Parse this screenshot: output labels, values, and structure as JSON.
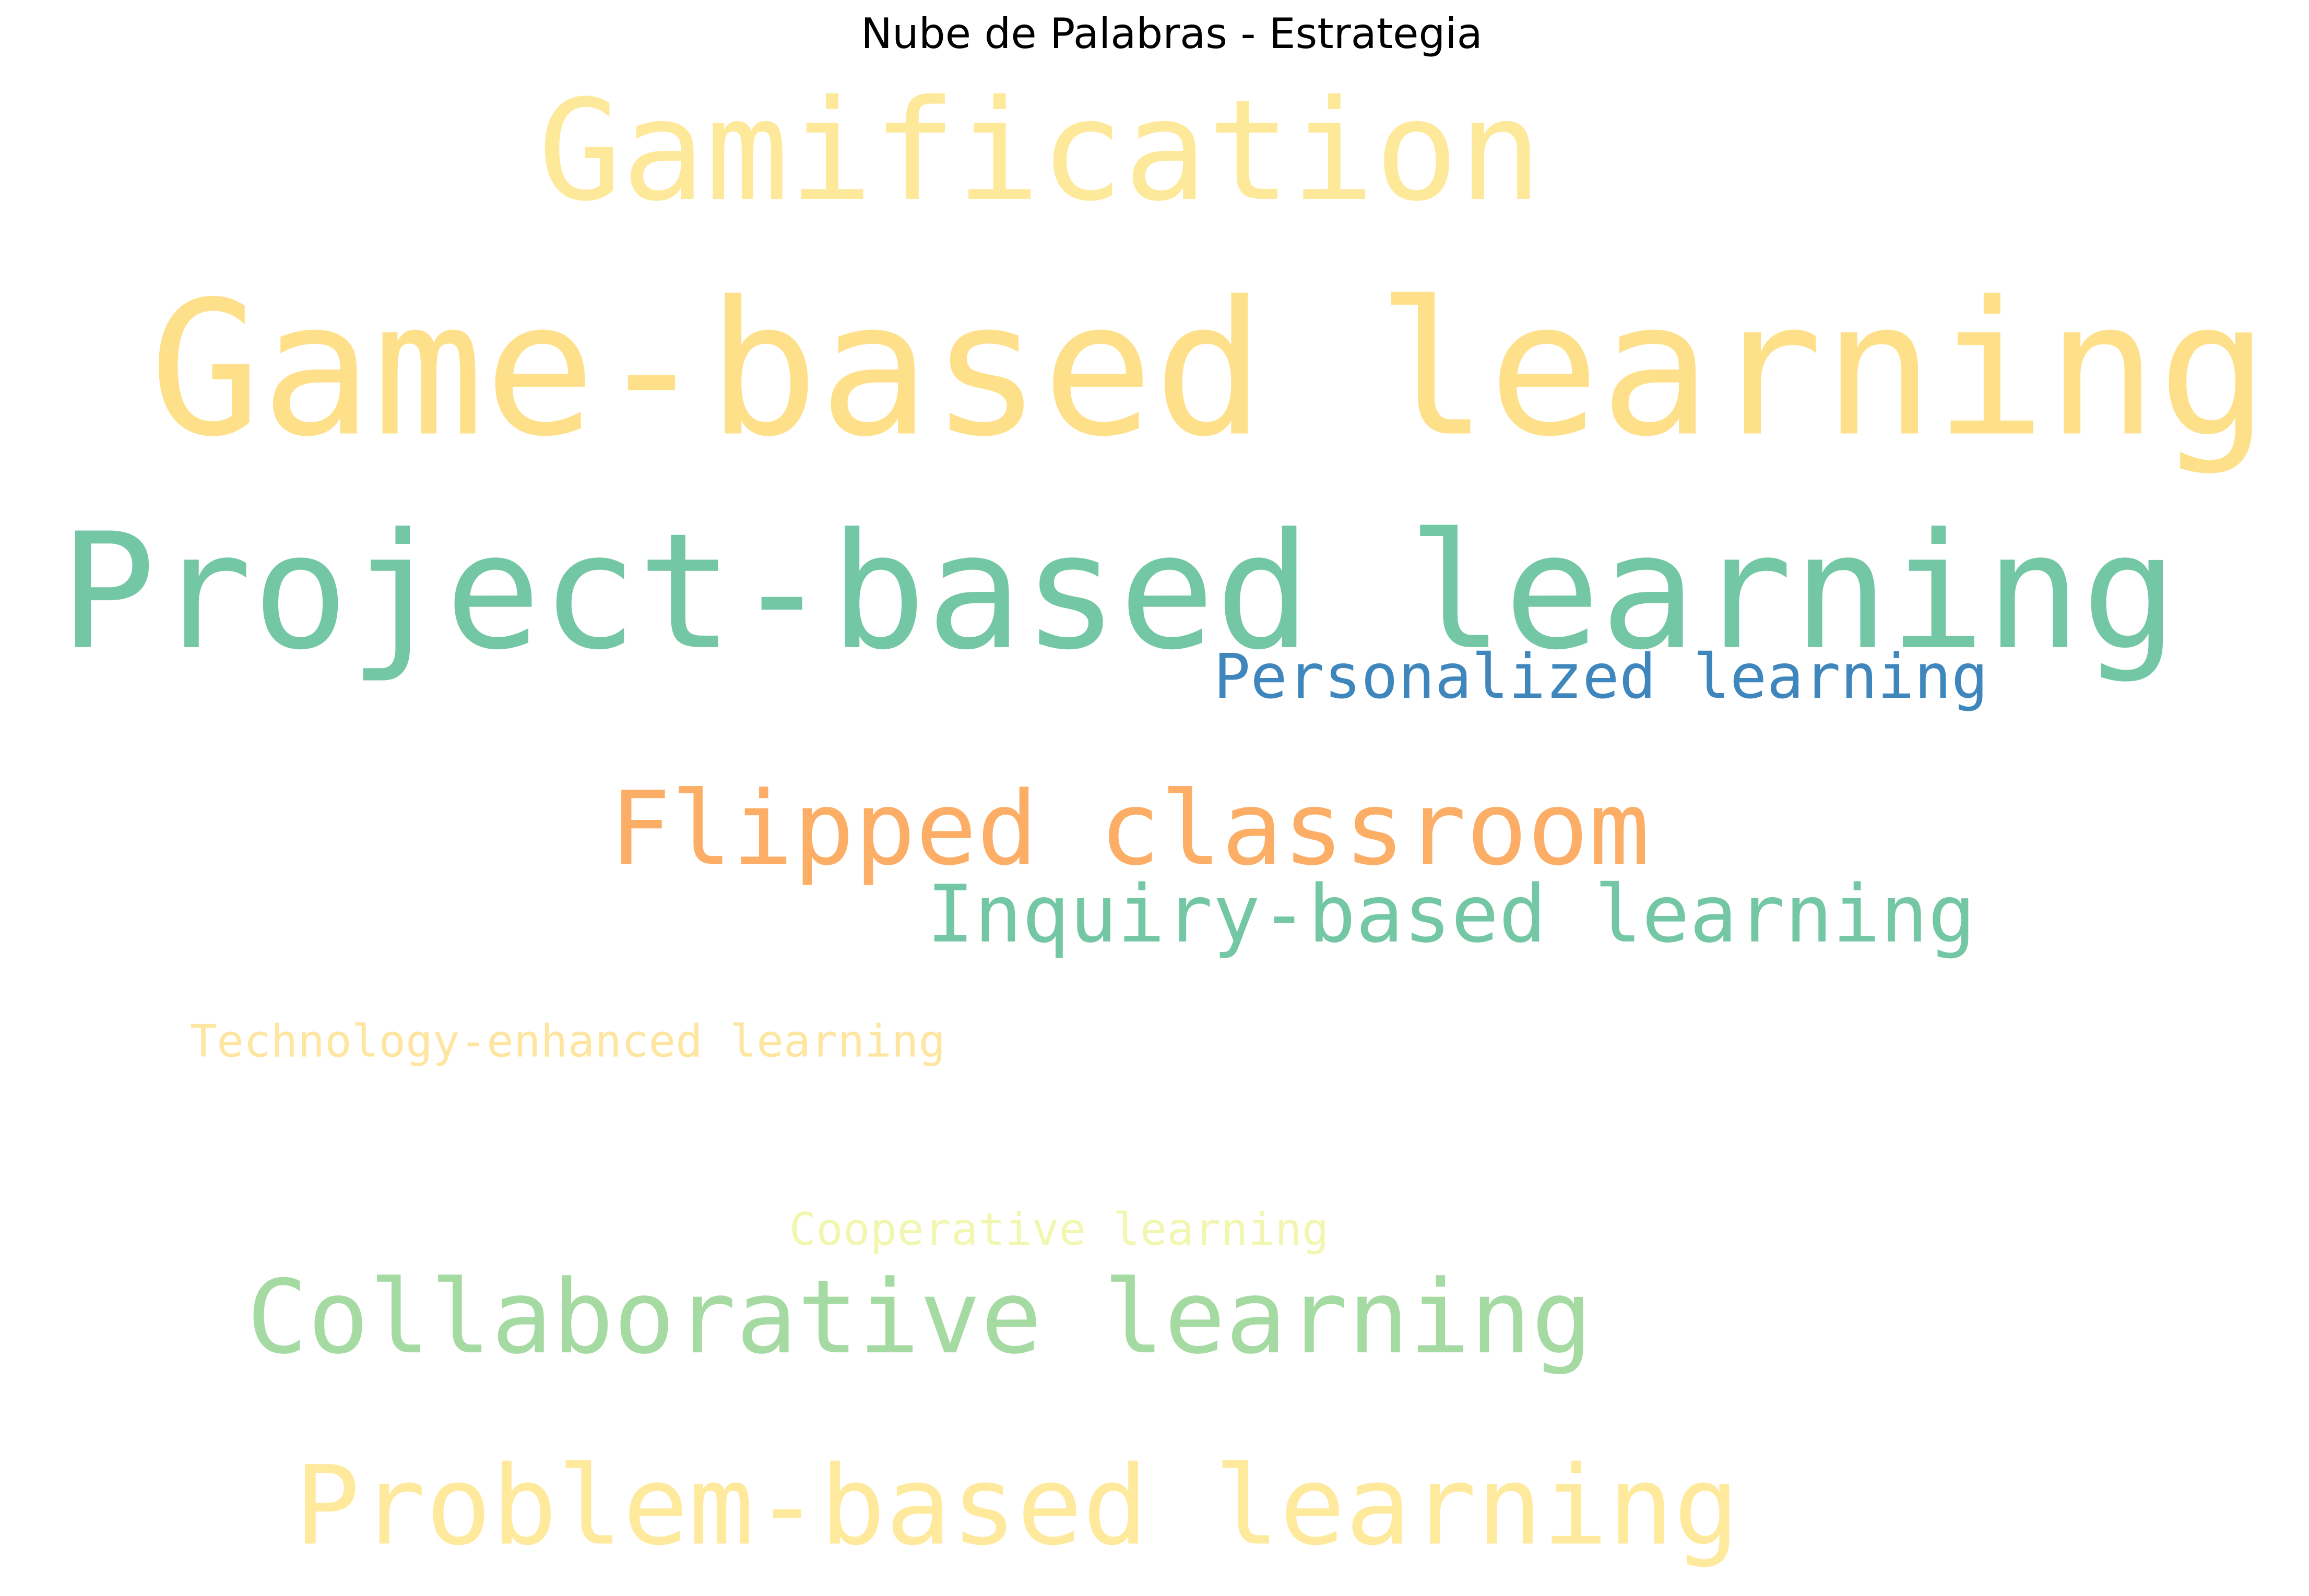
{
  "chart_data": {
    "type": "wordcloud",
    "title": "Nube de Palabras - Estrategia",
    "words": [
      {
        "text": "Gamification",
        "color": "#fee89a"
      },
      {
        "text": "Game-based learning",
        "color": "#fee08b"
      },
      {
        "text": "Project-based learning",
        "color": "#74c7a5"
      },
      {
        "text": "Personalized learning",
        "color": "#3f86bd"
      },
      {
        "text": "Flipped classroom",
        "color": "#fdae66"
      },
      {
        "text": "Inquiry-based learning",
        "color": "#74c7a5"
      },
      {
        "text": "Technology-enhanced learning",
        "color": "#fee5a0"
      },
      {
        "text": "Cooperative learning",
        "color": "#f1f7b0"
      },
      {
        "text": "Collaborative learning",
        "color": "#a5dba2"
      },
      {
        "text": "Problem-based learning",
        "color": "#fee99c"
      }
    ]
  }
}
